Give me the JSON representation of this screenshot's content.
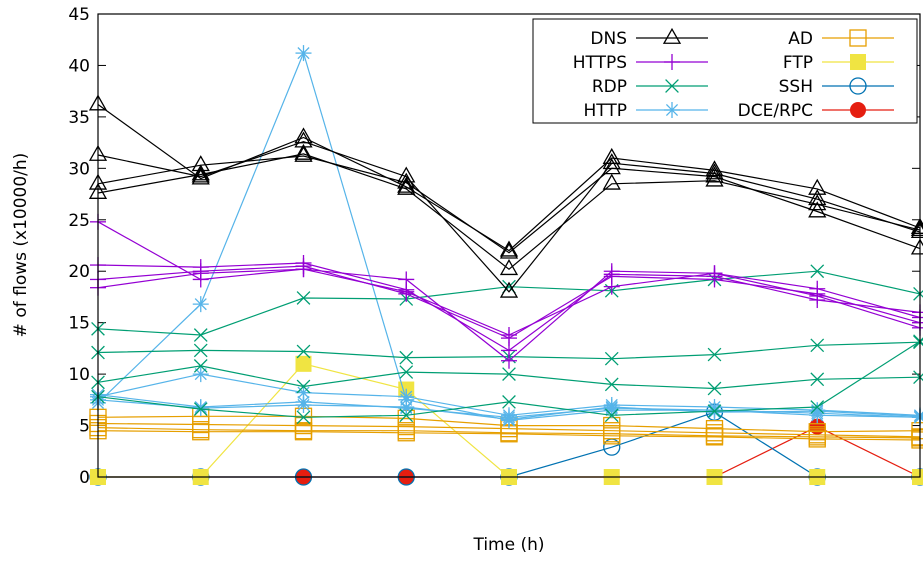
{
  "chart_data": {
    "type": "line",
    "xlabel": "Time (h)",
    "ylabel": "# of flows (x10000/h)",
    "ylim": [
      0,
      45
    ],
    "yticks": [
      0,
      5,
      10,
      15,
      20,
      25,
      30,
      35,
      40,
      45
    ],
    "x_points": 9,
    "grid": false,
    "legend_position": "top-right",
    "series": [
      {
        "name": "DNS",
        "color": "#000000",
        "marker": "triangle-open",
        "lines": [
          [
            36.2,
            29.0,
            33.0,
            28.2,
            22.0,
            31.0,
            29.8,
            28.0,
            24.2
          ],
          [
            31.3,
            29.2,
            32.6,
            29.2,
            18.0,
            30.5,
            29.5,
            27.0,
            23.8
          ],
          [
            28.5,
            30.3,
            31.2,
            28.6,
            21.8,
            30.0,
            29.2,
            25.8,
            22.2
          ],
          [
            27.6,
            29.4,
            31.4,
            28.0,
            20.2,
            28.5,
            28.8,
            26.5,
            24.0
          ]
        ]
      },
      {
        "name": "HTTPS",
        "color": "#9400d3",
        "marker": "plus",
        "lines": [
          [
            24.8,
            19.2,
            20.2,
            19.2,
            11.3,
            20.0,
            19.8,
            18.3,
            15.5
          ],
          [
            20.6,
            20.4,
            20.8,
            18.2,
            12.3,
            19.7,
            19.5,
            17.2,
            16.0
          ],
          [
            19.2,
            20.0,
            20.5,
            17.8,
            13.5,
            19.5,
            19.2,
            17.8,
            15.0
          ],
          [
            18.4,
            19.8,
            20.2,
            18.0,
            13.8,
            18.5,
            19.8,
            17.6,
            14.5
          ]
        ]
      },
      {
        "name": "RDP",
        "color": "#009e73",
        "marker": "cross",
        "lines": [
          [
            14.4,
            13.8,
            17.4,
            17.3,
            18.5,
            18.1,
            19.2,
            20.0,
            17.8
          ],
          [
            12.1,
            12.3,
            12.2,
            11.6,
            11.7,
            11.5,
            11.9,
            12.8,
            13.1
          ],
          [
            9.2,
            10.8,
            8.8,
            10.2,
            10.0,
            9.0,
            8.6,
            9.5,
            9.7
          ],
          [
            7.8,
            6.6,
            5.8,
            6.0,
            7.3,
            6.0,
            6.4,
            6.8,
            13.2
          ]
        ]
      },
      {
        "name": "HTTP",
        "color": "#56b4e9",
        "marker": "star",
        "lines": [
          [
            7.2,
            16.8,
            41.2,
            7.5,
            5.5,
            6.5,
            6.5,
            6.2,
            5.8
          ],
          [
            7.8,
            10.0,
            8.2,
            7.8,
            6.0,
            7.0,
            6.8,
            6.5,
            6.0
          ],
          [
            8.0,
            6.8,
            7.3,
            6.7,
            5.8,
            6.7,
            6.5,
            6.0,
            5.8
          ],
          [
            7.5,
            6.7,
            7.0,
            6.8,
            5.6,
            6.8,
            6.3,
            6.4,
            5.9
          ]
        ]
      },
      {
        "name": "AD",
        "color": "#e69f00",
        "marker": "square-open",
        "lines": [
          [
            5.8,
            5.9,
            5.9,
            5.7,
            5.0,
            5.0,
            4.7,
            4.4,
            4.5
          ],
          [
            5.2,
            5.1,
            5.0,
            4.9,
            4.7,
            4.5,
            4.3,
            4.1,
            3.9
          ],
          [
            4.8,
            4.6,
            4.5,
            4.5,
            4.3,
            4.2,
            4.0,
            3.9,
            3.8
          ],
          [
            4.5,
            4.4,
            4.4,
            4.3,
            4.2,
            4.0,
            3.9,
            3.7,
            3.6
          ]
        ]
      },
      {
        "name": "FTP",
        "color": "#f0e442",
        "marker": "square-filled",
        "lines": [
          [
            0,
            0,
            11.0,
            8.5,
            0,
            0,
            0,
            0,
            0
          ]
        ]
      },
      {
        "name": "SSH",
        "color": "#0072b2",
        "marker": "circle-open",
        "lines": [
          [
            0,
            0,
            0,
            0,
            0,
            2.9,
            6.3,
            0,
            0
          ]
        ]
      },
      {
        "name": "DCE/RPC",
        "color": "#e51e10",
        "marker": "circle-filled",
        "lines": [
          [
            0,
            0,
            0,
            0,
            0,
            0,
            0,
            4.9,
            0
          ]
        ]
      }
    ]
  }
}
